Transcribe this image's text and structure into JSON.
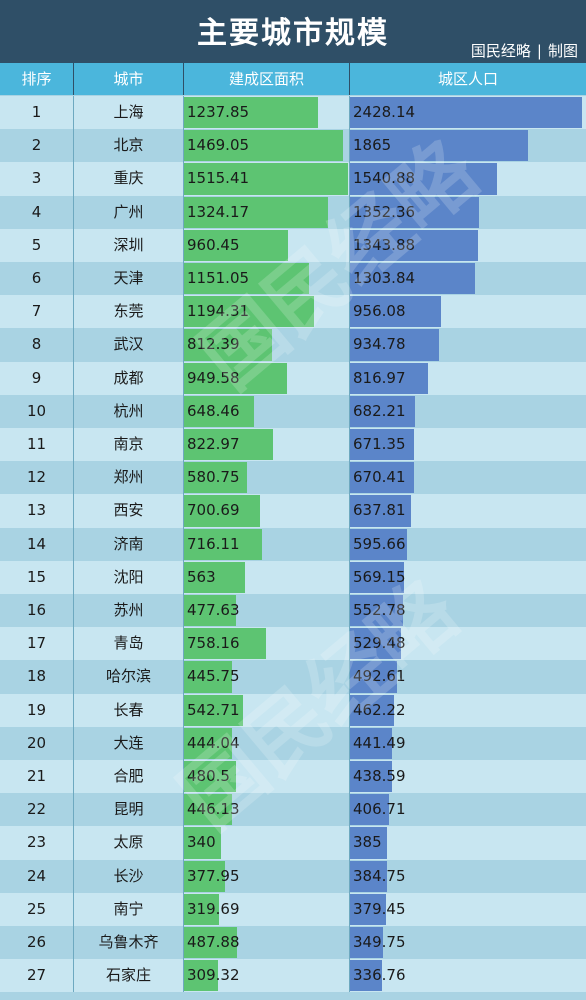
{
  "title": "主要城市规模",
  "credit": {
    "source": "国民经略",
    "sep": "|",
    "note": "制图"
  },
  "watermark": "国民经略",
  "columns": {
    "rank": "排序",
    "city": "城市",
    "area": "建成区面积",
    "pop": "城区人口"
  },
  "colors": {
    "header_bg": "#2f4f67",
    "colhead_bg": "#4bb6dc",
    "area_bar": "#5dc472",
    "pop_bar": "#5b85c9",
    "row_light": "#c8e6f1",
    "row_dark": "#a9d3e3"
  },
  "chart_data": {
    "type": "table",
    "area_max_ref": 1530,
    "pop_max_ref": 2470,
    "rows": [
      {
        "rank": "1",
        "city": "上海",
        "area": 1237.85,
        "pop": 2428.14
      },
      {
        "rank": "2",
        "city": "北京",
        "area": 1469.05,
        "pop": 1865
      },
      {
        "rank": "3",
        "city": "重庆",
        "area": 1515.41,
        "pop": 1540.88
      },
      {
        "rank": "4",
        "city": "广州",
        "area": 1324.17,
        "pop": 1352.36
      },
      {
        "rank": "5",
        "city": "深圳",
        "area": 960.45,
        "pop": 1343.88
      },
      {
        "rank": "6",
        "city": "天津",
        "area": 1151.05,
        "pop": 1303.84
      },
      {
        "rank": "7",
        "city": "东莞",
        "area": 1194.31,
        "pop": 956.08
      },
      {
        "rank": "8",
        "city": "武汉",
        "area": 812.39,
        "pop": 934.78
      },
      {
        "rank": "9",
        "city": "成都",
        "area": 949.58,
        "pop": 816.97
      },
      {
        "rank": "10",
        "city": "杭州",
        "area": 648.46,
        "pop": 682.21
      },
      {
        "rank": "11",
        "city": "南京",
        "area": 822.97,
        "pop": 671.35
      },
      {
        "rank": "12",
        "city": "郑州",
        "area": 580.75,
        "pop": 670.41
      },
      {
        "rank": "13",
        "city": "西安",
        "area": 700.69,
        "pop": 637.81
      },
      {
        "rank": "14",
        "city": "济南",
        "area": 716.11,
        "pop": 595.66
      },
      {
        "rank": "15",
        "city": "沈阳",
        "area": 563,
        "pop": 569.15
      },
      {
        "rank": "16",
        "city": "苏州",
        "area": 477.63,
        "pop": 552.78
      },
      {
        "rank": "17",
        "city": "青岛",
        "area": 758.16,
        "pop": 529.48
      },
      {
        "rank": "18",
        "city": "哈尔滨",
        "area": 445.75,
        "pop": 492.61
      },
      {
        "rank": "19",
        "city": "长春",
        "area": 542.71,
        "pop": 462.22
      },
      {
        "rank": "20",
        "city": "大连",
        "area": 444.04,
        "pop": 441.49
      },
      {
        "rank": "21",
        "city": "合肥",
        "area": 480.5,
        "pop": 438.59
      },
      {
        "rank": "22",
        "city": "昆明",
        "area": 446.13,
        "pop": 406.71
      },
      {
        "rank": "23",
        "city": "太原",
        "area": 340,
        "pop": 385
      },
      {
        "rank": "24",
        "city": "长沙",
        "area": 377.95,
        "pop": 384.75
      },
      {
        "rank": "25",
        "city": "南宁",
        "area": 319.69,
        "pop": 379.45
      },
      {
        "rank": "26",
        "city": "乌鲁木齐",
        "area": 487.88,
        "pop": 349.75
      },
      {
        "rank": "27",
        "city": "石家庄",
        "area": 309.32,
        "pop": 336.76
      }
    ]
  }
}
